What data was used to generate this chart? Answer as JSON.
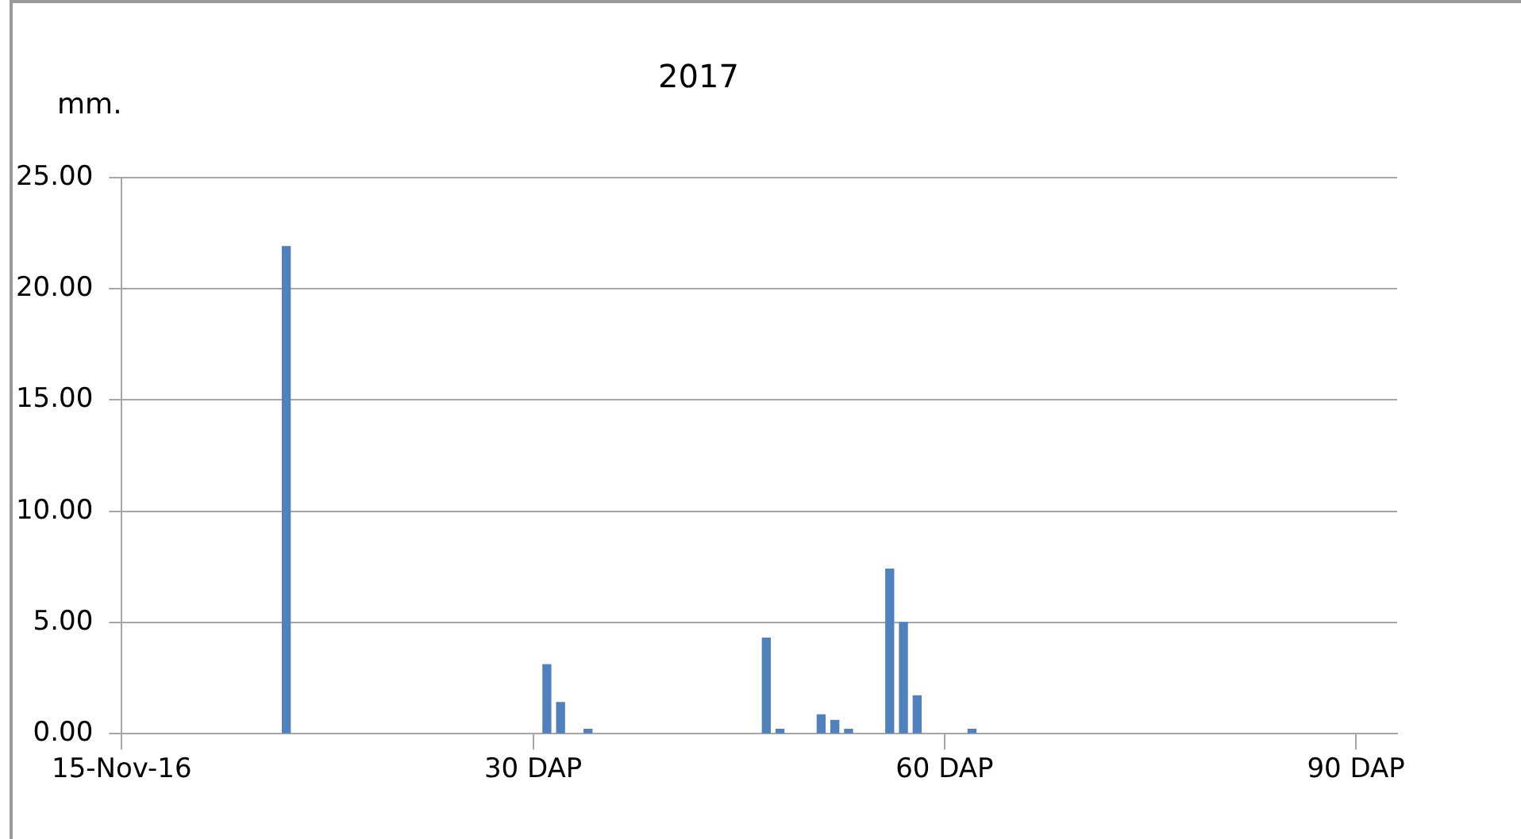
{
  "chart_data": {
    "type": "bar",
    "title": "2017",
    "ylabel": "mm.",
    "x": [
      12,
      31,
      32,
      34,
      47,
      48,
      51,
      52,
      53,
      56,
      57,
      58,
      62
    ],
    "series": [
      {
        "color": "#4f81bd",
        "values": [
          21.9,
          3.1,
          1.4,
          0.2,
          4.3,
          0.2,
          0.85,
          0.6,
          0.2,
          7.4,
          5.0,
          1.7,
          0.2
        ]
      }
    ],
    "xlim": [
      0,
      93
    ],
    "xticks": [
      {
        "value": 0,
        "label": "15-Nov-16"
      },
      {
        "value": 30,
        "label": "30 DAP"
      },
      {
        "value": 60,
        "label": "60 DAP"
      },
      {
        "value": 90,
        "label": "90 DAP"
      }
    ],
    "ylim": [
      0,
      25
    ],
    "yticks": [
      {
        "value": 0,
        "label": "0.00"
      },
      {
        "value": 5,
        "label": "5.00"
      },
      {
        "value": 10,
        "label": "10.00"
      },
      {
        "value": 15,
        "label": "15.00"
      },
      {
        "value": 20,
        "label": "20.00"
      },
      {
        "value": 25,
        "label": "25.00"
      }
    ],
    "grid": "y",
    "legend": false
  }
}
